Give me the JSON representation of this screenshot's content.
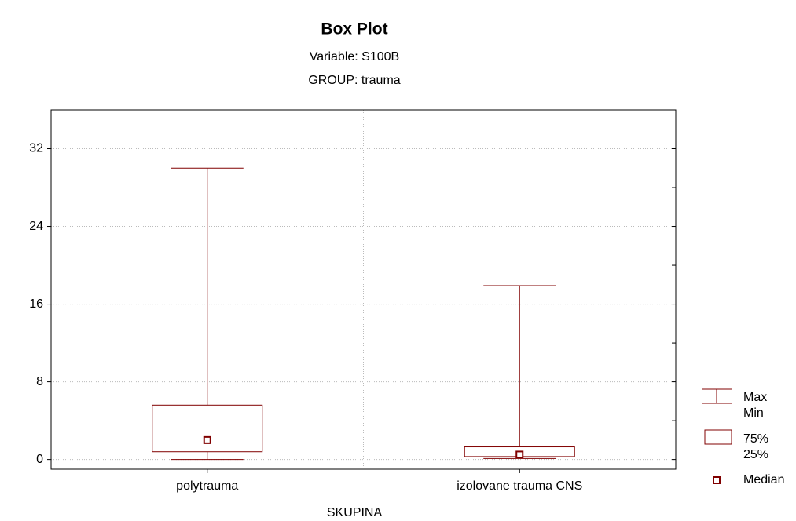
{
  "chart_data": {
    "type": "box",
    "title": "Box Plot",
    "subtitles": [
      "Variable: S100B",
      "GROUP: trauma"
    ],
    "x_label": "SKUPINA",
    "categories": [
      "polytrauma",
      "izolovane trauma CNS"
    ],
    "boxes": [
      {
        "min": 0,
        "q1": 0.8,
        "median": 2.0,
        "q3": 5.6,
        "max": 30
      },
      {
        "min": 0.1,
        "q1": 0.3,
        "median": 0.5,
        "q3": 1.3,
        "max": 17.9
      }
    ],
    "color": "#800000",
    "ylim": [
      -1,
      36
    ],
    "yticks": [
      0,
      8,
      16,
      24,
      32
    ],
    "yticks_minor": [
      4,
      12,
      20,
      28
    ],
    "grid": true,
    "legend": {
      "position": "right",
      "whisker": [
        "Max",
        "Min"
      ],
      "box": [
        "75%",
        "25%"
      ],
      "median": "Median"
    }
  }
}
